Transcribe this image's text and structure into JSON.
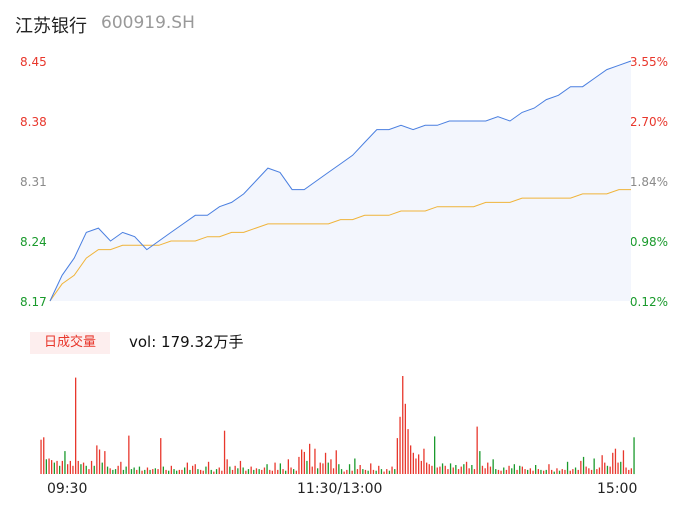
{
  "header": {
    "name": "江苏银行",
    "code": "600919.SH"
  },
  "price_axis": {
    "left_labels": [
      "8.45",
      "8.38",
      "8.31",
      "8.24",
      "8.17"
    ],
    "right_labels": [
      "3.55%",
      "2.70%",
      "1.84%",
      "0.98%",
      "0.12%"
    ]
  },
  "volume": {
    "badge": "日成交量",
    "text": "vol: 179.32万手"
  },
  "time_axis": [
    "09:30",
    "11:30/13:00",
    "15:00"
  ],
  "colors": {
    "price_line": "#4a7fe0",
    "avg_line": "#f0b43a",
    "up": "#e8372c",
    "down": "#1a9a2c",
    "area_fill": "#f3f6fd"
  },
  "chart_data": [
    {
      "type": "line",
      "x": [
        "09:30",
        "09:35",
        "09:40",
        "09:45",
        "09:50",
        "09:55",
        "10:00",
        "10:05",
        "10:10",
        "10:15",
        "10:20",
        "10:25",
        "10:30",
        "10:35",
        "10:40",
        "10:45",
        "10:50",
        "10:55",
        "11:00",
        "11:05",
        "11:10",
        "11:15",
        "11:20",
        "11:25",
        "11:30",
        "13:05",
        "13:10",
        "13:15",
        "13:20",
        "13:25",
        "13:30",
        "13:35",
        "13:40",
        "13:45",
        "13:50",
        "13:55",
        "14:00",
        "14:05",
        "14:10",
        "14:15",
        "14:20",
        "14:25",
        "14:30",
        "14:35",
        "14:40",
        "14:45",
        "14:50",
        "14:55",
        "15:00"
      ],
      "series": [
        {
          "values": [
            8.17,
            8.2,
            8.22,
            8.25,
            8.255,
            8.24,
            8.25,
            8.245,
            8.23,
            8.24,
            8.25,
            8.26,
            8.27,
            8.27,
            8.28,
            8.285,
            8.295,
            8.31,
            8.325,
            8.32,
            8.3,
            8.3,
            8.31,
            8.32,
            8.33,
            8.34,
            8.355,
            8.37,
            8.37,
            8.375,
            8.37,
            8.375,
            8.375,
            8.38,
            8.38,
            8.38,
            8.38,
            8.385,
            8.38,
            8.39,
            8.395,
            8.405,
            8.41,
            8.42,
            8.42,
            8.43,
            8.44,
            8.445,
            8.45
          ]
        },
        {
          "values": [
            8.17,
            8.19,
            8.2,
            8.22,
            8.23,
            8.23,
            8.235,
            8.235,
            8.235,
            8.235,
            8.24,
            8.24,
            8.24,
            8.245,
            8.245,
            8.25,
            8.25,
            8.255,
            8.26,
            8.26,
            8.26,
            8.26,
            8.26,
            8.26,
            8.265,
            8.265,
            8.27,
            8.27,
            8.27,
            8.275,
            8.275,
            8.275,
            8.28,
            8.28,
            8.28,
            8.28,
            8.285,
            8.285,
            8.285,
            8.29,
            8.29,
            8.29,
            8.29,
            8.29,
            8.295,
            8.295,
            8.295,
            8.3,
            8.3
          ]
        }
      ],
      "ylim": [
        8.17,
        8.45
      ]
    },
    {
      "type": "bar",
      "values": [
        4.2,
        4.5,
        1.8,
        1.9,
        1.7,
        1.4,
        1.6,
        1.0,
        1.6,
        2.8,
        1.2,
        1.6,
        1.0,
        11.8,
        1.6,
        1.2,
        1.4,
        1.0,
        0.6,
        1.6,
        1.0,
        3.5,
        3.0,
        1.4,
        2.8,
        0.9,
        0.7,
        0.5,
        0.6,
        1.0,
        1.5,
        0.5,
        0.9,
        4.7,
        0.6,
        0.8,
        0.5,
        0.9,
        0.4,
        0.5,
        0.8,
        0.5,
        0.6,
        0.7,
        0.6,
        4.4,
        0.9,
        0.5,
        0.4,
        1.0,
        0.6,
        0.4,
        0.5,
        0.5,
        0.8,
        1.4,
        0.5,
        1.0,
        1.2,
        0.6,
        0.5,
        0.4,
        0.9,
        1.5,
        0.5,
        0.3,
        0.6,
        0.8,
        0.4,
        5.3,
        1.8,
        0.9,
        0.5,
        1.0,
        0.7,
        1.6,
        0.8,
        0.4,
        0.6,
        0.9,
        0.5,
        0.7,
        0.6,
        0.5,
        0.8,
        1.2,
        0.5,
        0.4,
        1.4,
        0.5,
        1.3,
        0.6,
        0.4,
        1.8,
        0.8,
        0.6,
        0.4,
        2.1,
        3.0,
        2.7,
        1.6,
        3.7,
        0.9,
        3.1,
        0.7,
        1.4,
        1.3,
        2.6,
        1.4,
        1.8,
        0.7,
        2.9,
        1.2,
        0.6,
        0.3,
        0.5,
        1.2,
        0.4,
        1.9,
        0.6,
        1.1,
        0.6,
        0.5,
        0.4,
        1.3,
        0.5,
        0.4,
        1.0,
        0.6,
        0.3,
        0.6,
        0.4,
        0.9,
        0.6,
        4.4,
        7.0,
        12.0,
        8.6,
        5.5,
        3.5,
        2.6,
        1.9,
        2.4,
        1.6,
        3.1,
        1.4,
        1.2,
        1.0,
        4.6,
        0.8,
        0.9,
        1.3,
        1.0,
        0.6,
        1.3,
        0.8,
        1.1,
        0.6,
        0.9,
        1.2,
        1.5,
        0.7,
        1.1,
        0.6,
        5.8,
        2.8,
        1.0,
        0.7,
        1.4,
        0.9,
        1.8,
        0.6,
        0.5,
        0.4,
        0.8,
        0.5,
        1.0,
        0.7,
        1.2,
        0.5,
        1.0,
        0.9,
        0.6,
        0.5,
        0.7,
        0.4,
        1.1,
        0.6,
        0.5,
        0.4,
        0.5,
        1.2,
        0.5,
        0.3,
        0.7,
        0.4,
        0.6,
        0.5,
        1.5,
        0.4,
        0.6,
        0.8,
        0.5,
        1.6,
        2.1,
        0.9,
        0.7,
        0.5,
        1.9,
        0.6,
        0.8,
        2.3,
        1.4,
        1.0,
        0.9,
        2.6,
        3.1,
        1.4,
        1.5,
        2.9,
        0.8,
        0.5,
        0.7,
        4.5
      ],
      "directions": [
        "u",
        "u",
        "d",
        "u",
        "u",
        "d",
        "u",
        "d",
        "u",
        "d",
        "u",
        "u",
        "u",
        "u",
        "u",
        "d",
        "u",
        "d",
        "u",
        "u",
        "d",
        "u",
        "u",
        "d",
        "u",
        "d",
        "u",
        "d",
        "d",
        "u",
        "u",
        "d",
        "d",
        "u",
        "d",
        "d",
        "u",
        "d",
        "u",
        "d",
        "u",
        "d",
        "u",
        "d",
        "u",
        "u",
        "d",
        "u",
        "d",
        "u",
        "d",
        "d",
        "u",
        "u",
        "d",
        "u",
        "d",
        "u",
        "u",
        "d",
        "u",
        "u",
        "d",
        "u",
        "d",
        "u",
        "d",
        "u",
        "u",
        "u",
        "u",
        "d",
        "u",
        "u",
        "d",
        "u",
        "d",
        "u",
        "d",
        "u",
        "d",
        "u",
        "d",
        "u",
        "u",
        "d",
        "u",
        "u",
        "u",
        "u",
        "d",
        "u",
        "d",
        "u",
        "u",
        "d",
        "u",
        "u",
        "u",
        "u",
        "d",
        "u",
        "u",
        "u",
        "d",
        "u",
        "u",
        "u",
        "d",
        "u",
        "u",
        "u",
        "d",
        "d",
        "u",
        "u",
        "d",
        "u",
        "d",
        "u",
        "u",
        "d",
        "u",
        "d",
        "u",
        "u",
        "d",
        "u",
        "d",
        "u",
        "u",
        "d",
        "u",
        "d",
        "u",
        "u",
        "u",
        "u",
        "u",
        "u",
        "u",
        "u",
        "u",
        "u",
        "u",
        "u",
        "u",
        "u",
        "d",
        "u",
        "u",
        "d",
        "u",
        "u",
        "d",
        "u",
        "d",
        "u",
        "u",
        "d",
        "u",
        "u",
        "d",
        "u",
        "u",
        "d",
        "u",
        "u",
        "u",
        "u",
        "d",
        "d",
        "u",
        "u",
        "d",
        "u",
        "u",
        "d",
        "d",
        "u",
        "d",
        "u",
        "u",
        "d",
        "u",
        "u",
        "d",
        "u",
        "d",
        "u",
        "d",
        "u",
        "u",
        "d",
        "u",
        "d",
        "u",
        "u",
        "d",
        "u",
        "u",
        "d",
        "u",
        "u",
        "d",
        "u",
        "u",
        "u",
        "d",
        "u",
        "u",
        "u",
        "u",
        "d",
        "u",
        "u",
        "u",
        "u",
        "d",
        "u",
        "u",
        "u",
        "u",
        "d",
        "u",
        "d"
      ]
    }
  ]
}
